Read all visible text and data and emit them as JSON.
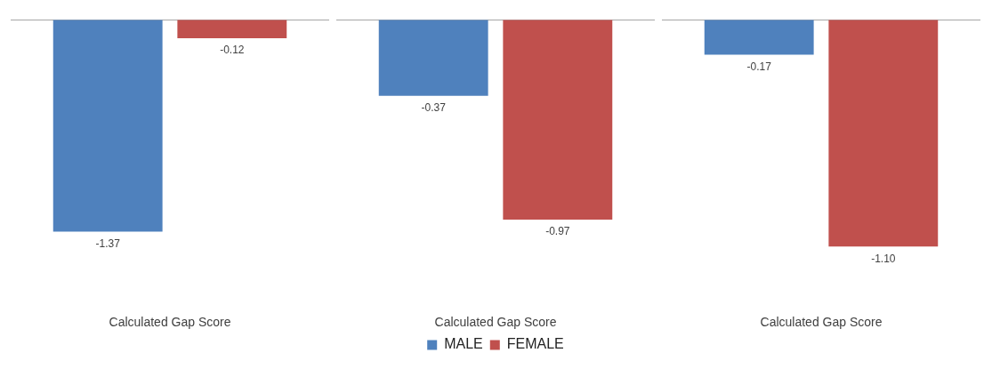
{
  "chart_data": [
    {
      "type": "bar",
      "categories": [
        null
      ],
      "xlabel": "Calculated Gap Score",
      "series": [
        {
          "color": "#4f81bd",
          "values": [
            -1.37
          ],
          "value_labels": [
            "-1.37"
          ]
        },
        {
          "color": "#c0504d",
          "values": [
            -0.12
          ],
          "value_labels": [
            "-0.12"
          ]
        }
      ],
      "grid": false
    },
    {
      "type": "bar",
      "categories": [
        null
      ],
      "xlabel": "Calculated Gap Score",
      "series": [
        {
          "name": "MALE",
          "color": "#4f81bd",
          "values": [
            -0.37
          ],
          "value_labels": [
            "-0.37"
          ]
        },
        {
          "name": "FEMALE",
          "color": "#c0504d",
          "values": [
            -0.97
          ],
          "value_labels": [
            "-0.97"
          ]
        }
      ],
      "grid": false,
      "legend": "bottom"
    },
    {
      "type": "bar",
      "categories": [
        null
      ],
      "xlabel": "Calculated Gap Score",
      "series": [
        {
          "color": "#4f81bd",
          "values": [
            -0.17
          ],
          "value_labels": [
            "-0.17"
          ]
        },
        {
          "color": "#c0504d",
          "values": [
            -1.1
          ],
          "value_labels": [
            "-1.10"
          ]
        }
      ],
      "grid": false
    }
  ]
}
